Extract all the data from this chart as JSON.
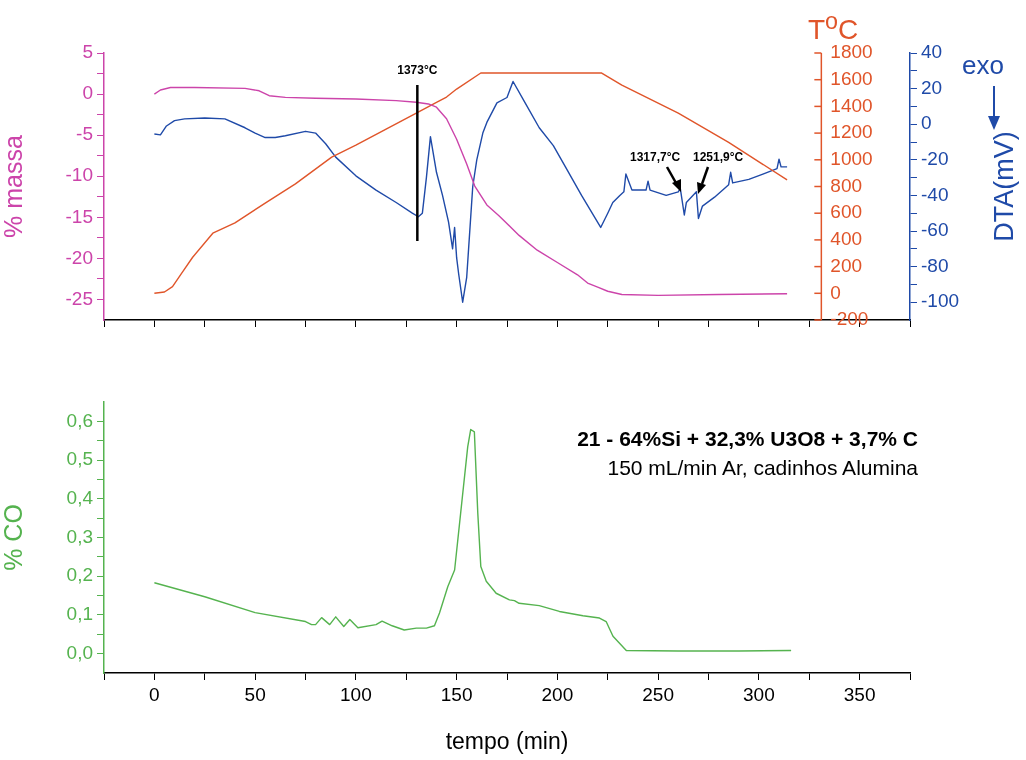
{
  "chart_data": [
    {
      "type": "line",
      "ylabel": "% massa",
      "y2label": "T$^{o}$C",
      "y3label": "DTA(mV)",
      "grid": false,
      "legend": false,
      "tick_labels": "y",
      "xlim": [
        -25,
        375
      ],
      "xticks": [
        {
          "value": -25,
          "label": null
        },
        0,
        {
          "value": 25,
          "label": null
        },
        50,
        {
          "value": 75,
          "label": null
        },
        100,
        {
          "value": 125,
          "label": null
        },
        150,
        {
          "value": 175,
          "label": null
        },
        200,
        {
          "value": 225,
          "label": null
        },
        250,
        {
          "value": 275,
          "label": null
        },
        300,
        {
          "value": 325,
          "label": null
        },
        350,
        {
          "value": 375,
          "label": null
        }
      ],
      "ylim": [
        -27.5,
        5
      ],
      "yticks": [
        5,
        {
          "value": 2.5,
          "label": null
        },
        0,
        {
          "value": -2.5,
          "label": null
        },
        -5,
        {
          "value": -7.5,
          "label": null
        },
        -10,
        {
          "value": -12.5,
          "label": null
        },
        -15,
        {
          "value": -17.5,
          "label": null
        },
        -20,
        {
          "value": -22.5,
          "label": null
        },
        -25
      ],
      "y2lim": [
        -200,
        1800
      ],
      "y2ticks": [
        1800,
        1600,
        1400,
        1200,
        1000,
        800,
        600,
        400,
        200,
        0,
        -200
      ],
      "y3lim": [
        -110,
        40
      ],
      "y3ticks": [
        40,
        {
          "value": 30,
          "label": null
        },
        20,
        {
          "value": 10,
          "label": null
        },
        0,
        {
          "value": -10,
          "label": null
        },
        -20,
        {
          "value": -30,
          "label": null
        },
        -40,
        {
          "value": -50,
          "label": null
        },
        -60,
        {
          "value": -70,
          "label": null
        },
        -80,
        {
          "value": -90,
          "label": null
        },
        -100
      ],
      "ref_lines": [
        {
          "axis": "x",
          "value": 130.5,
          "label": "1373°C",
          "color": "#000000"
        }
      ],
      "annotations": [
        "exo",
        "1317,7°C",
        "1251,9°C"
      ],
      "series": [
        {
          "color": "#cc44aa",
          "axis": "y",
          "x": [
            0,
            3,
            8,
            20,
            45,
            52,
            57,
            65,
            80,
            100,
            120,
            130,
            136,
            140,
            145,
            150,
            155,
            159,
            165,
            171,
            181,
            190,
            200,
            210,
            215,
            220,
            225,
            232,
            250,
            280,
            314
          ],
          "values": [
            0,
            0.5,
            0.8,
            0.8,
            0.7,
            0.4,
            -0.2,
            -0.4,
            -0.5,
            -0.6,
            -0.8,
            -1.0,
            -1.2,
            -1.6,
            -3.0,
            -5.5,
            -8.5,
            -11.2,
            -13.5,
            -14.8,
            -17.2,
            -19,
            -20.5,
            -22,
            -23,
            -23.5,
            -24,
            -24.4,
            -24.5,
            -24.4,
            -24.3
          ]
        },
        {
          "color": "#e0552a",
          "axis": "y2",
          "x": [
            0,
            5,
            9,
            14,
            19,
            29,
            40,
            55,
            70,
            88,
            100,
            115,
            130,
            140,
            145,
            150,
            162,
            222,
            232,
            260,
            285,
            314
          ],
          "values": [
            0,
            10,
            50,
            160,
            270,
            450,
            527,
            676,
            820,
            1020,
            1110,
            1230,
            1350,
            1430,
            1470,
            1530,
            1650,
            1650,
            1560,
            1350,
            1130,
            850
          ]
        },
        {
          "color": "#1f4aa8",
          "axis": "y3",
          "x": [
            0,
            3,
            6,
            10,
            15,
            25,
            35,
            45,
            50,
            55,
            60,
            65,
            75,
            80,
            85,
            90,
            100,
            110,
            120,
            128,
            131,
            133,
            135,
            137,
            140,
            143,
            146,
            148,
            149,
            150,
            151,
            153,
            155,
            158,
            160,
            163,
            165,
            170,
            175,
            178,
            184,
            191,
            198,
            204,
            212,
            221.5,
            225,
            227.5,
            231,
            233,
            234,
            237,
            244,
            245,
            246,
            254,
            260,
            261,
            263,
            264,
            269,
            270,
            272,
            278,
            285,
            286,
            287,
            295,
            302,
            309,
            310,
            311,
            314
          ],
          "values": [
            -5.5,
            -6,
            -1,
            2,
            3,
            3.5,
            3,
            -2,
            -5,
            -7.5,
            -7.5,
            -6.5,
            -4,
            -5,
            -11,
            -18.5,
            -29,
            -37,
            -44,
            -50,
            -52,
            -50,
            -30,
            -7,
            -27,
            -40,
            -55,
            -70,
            -58,
            -75,
            -84,
            -100,
            -86,
            -35,
            -20,
            -5,
            1,
            12,
            15,
            24,
            12,
            -2,
            -12,
            -24,
            -40,
            -58,
            -50,
            -44,
            -40,
            -38,
            -28,
            -37,
            -37,
            -32,
            -37,
            -40,
            -38,
            -36,
            -51,
            -44,
            -38,
            -53,
            -46,
            -41,
            -34,
            -27,
            -33,
            -31,
            -28,
            -25,
            -19.6,
            -24,
            -24
          ]
        }
      ]
    },
    {
      "type": "line",
      "ylabel": "% CO",
      "xlabel": "tempo (min)",
      "grid": false,
      "legend": false,
      "xlim": [
        -25,
        375
      ],
      "xticks": [
        {
          "value": -25,
          "label": null
        },
        0,
        {
          "value": 25,
          "label": null
        },
        50,
        {
          "value": 75,
          "label": null
        },
        100,
        {
          "value": 125,
          "label": null
        },
        150,
        {
          "value": 175,
          "label": null
        },
        200,
        {
          "value": 225,
          "label": null
        },
        250,
        {
          "value": 275,
          "label": null
        },
        300,
        {
          "value": 325,
          "label": null
        },
        350,
        {
          "value": 375,
          "label": null
        }
      ],
      "ylim": [
        -0.05,
        0.65
      ],
      "yticks": [
        {
          "value": 0,
          "label": "0,0"
        },
        {
          "value": 0.05,
          "label": null
        },
        {
          "value": 0.1,
          "label": "0,1"
        },
        {
          "value": 0.15,
          "label": null
        },
        {
          "value": 0.2,
          "label": "0,2"
        },
        {
          "value": 0.25,
          "label": null
        },
        {
          "value": 0.3,
          "label": "0,3"
        },
        {
          "value": 0.35,
          "label": null
        },
        {
          "value": 0.4,
          "label": "0,4"
        },
        {
          "value": 0.45,
          "label": null
        },
        {
          "value": 0.5,
          "label": "0,5"
        },
        {
          "value": 0.55,
          "label": null
        },
        {
          "value": 0.6,
          "label": "0,6"
        }
      ],
      "annotations": [
        "21 - 64%Si + 32,3% U3O8 + 3,7% C",
        "150 mL/min Ar, cadinhos Alumina"
      ],
      "series": [
        {
          "color": "#55b34f",
          "x": [
            0,
            25,
            50,
            75,
            78,
            80,
            83,
            87,
            90,
            94,
            97,
            101,
            110,
            113,
            118,
            124,
            130,
            135,
            139,
            141.5,
            145.6,
            149,
            152,
            155.5,
            157,
            158.8,
            160.5,
            162,
            164.7,
            169.6,
            176.2,
            178.7,
            181,
            191,
            201,
            212.7,
            220.9,
            224.2,
            227.6,
            234.2,
            260,
            290,
            316
          ],
          "values": [
            0.183,
            0.147,
            0.106,
            0.083,
            0.075,
            0.075,
            0.093,
            0.075,
            0.095,
            0.07,
            0.088,
            0.067,
            0.075,
            0.084,
            0.072,
            0.061,
            0.066,
            0.066,
            0.072,
            0.105,
            0.173,
            0.216,
            0.363,
            0.534,
            0.579,
            0.573,
            0.363,
            0.225,
            0.187,
            0.156,
            0.139,
            0.137,
            0.13,
            0.124,
            0.109,
            0.098,
            0.092,
            0.083,
            0.045,
            0.008,
            0.007,
            0.007,
            0.008
          ]
        }
      ]
    }
  ]
}
